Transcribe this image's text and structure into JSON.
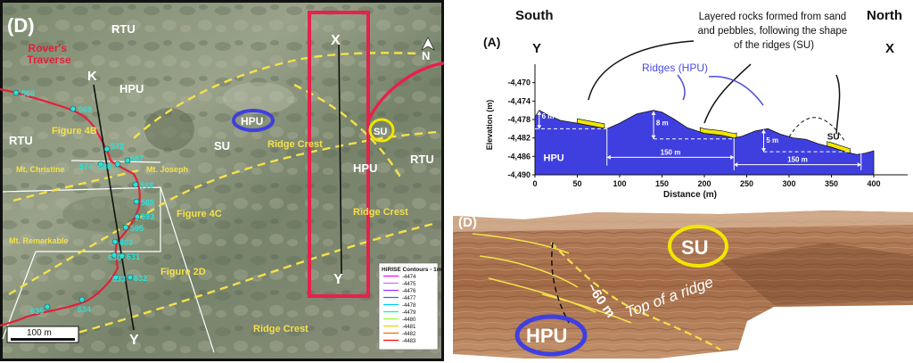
{
  "colors": {
    "hpu_blue": "#3f3fe0",
    "su_yellow": "#f2e600",
    "label_yellow": "#f4e04a",
    "traverse_red": "#e0213a",
    "waypoint_cyan": "#2fe0d8",
    "box_red": "#e8204a"
  },
  "map": {
    "panel_label": "(D)",
    "north_label": "N",
    "labels": {
      "rtu_top": "RTU",
      "rtu_left": "RTU",
      "rtu_right": "RTU",
      "hpu_top": "HPU",
      "hpu_oval": "HPU",
      "hpu_right": "HPU",
      "su_mid": "SU",
      "su_oval": "SU",
      "rovers_traverse": "Rover's\nTraverse",
      "k": "K",
      "x": "X",
      "y_bottom": "Y",
      "y_box": "Y",
      "figure_4b": "Figure 4B",
      "figure_4c": "Figure 4C",
      "figure_2d": "Figure 2D",
      "mt_christine": "Mt. Christine",
      "mt_joseph": "Mt. Joseph",
      "mt_remarkable": "Mt. Remarkable",
      "ridge_crest_1": "Ridge Crest",
      "ridge_crest_2": "Ridge Crest",
      "ridge_crest_3": "Ridge Crest",
      "scale_bar": "100 m"
    },
    "waypoints": [
      "568",
      "569",
      "572",
      "574",
      "586",
      "587",
      "588",
      "589",
      "593",
      "595",
      "603",
      "630",
      "631",
      "632",
      "633",
      "634",
      "635"
    ],
    "legend": {
      "title": "HiRISE Contours - 1m",
      "items": [
        "-4474",
        "-4475",
        "-4476",
        "-4477",
        "-4478",
        "-4479",
        "-4480",
        "-4481",
        "-4482",
        "-4483"
      ]
    }
  },
  "profile": {
    "panel_label": "(A)",
    "south": "South",
    "north": "North",
    "y_end": "Y",
    "x_end": "X",
    "annotation_layered": "Layered rocks formed from sand\nand pebbles, following the shape\nof the ridges (SU)",
    "annotation_ridges": "Ridges (HPU)",
    "hpu": "HPU",
    "su": "SU",
    "dims": [
      "6 m",
      "8 m",
      "5 m",
      "150 m",
      "150 m"
    ]
  },
  "chart_data": {
    "type": "area",
    "xlabel": "Distance (m)",
    "ylabel": "Elevation (m)",
    "xlim": [
      0,
      440
    ],
    "ylim": [
      -4490,
      -4466
    ],
    "x_ticks": [
      0,
      50,
      100,
      150,
      200,
      250,
      300,
      350,
      400
    ],
    "y_ticks": [
      -4470,
      -4474,
      -4478,
      -4482,
      -4486,
      -4490
    ],
    "series": [
      {
        "x": [
          0,
          5,
          15,
          30,
          50,
          70,
          85,
          100,
          120,
          140,
          150,
          165,
          180,
          200,
          220,
          235,
          245,
          260,
          275,
          290,
          305,
          320,
          335,
          350,
          360,
          370,
          380,
          390,
          400
        ],
        "y": [
          -4477.5,
          -4476.0,
          -4477.0,
          -4478.2,
          -4478.8,
          -4479.5,
          -4480.0,
          -4478.8,
          -4476.8,
          -4476.0,
          -4476.4,
          -4478.0,
          -4479.8,
          -4481.0,
          -4481.4,
          -4482.0,
          -4481.6,
          -4480.5,
          -4480.0,
          -4481.2,
          -4482.0,
          -4482.3,
          -4483.3,
          -4484.0,
          -4484.6,
          -4485.2,
          -4485.6,
          -4485.3,
          -4484.8
        ]
      }
    ]
  },
  "photo": {
    "panel_label": "(D)",
    "su": "SU",
    "hpu": "HPU",
    "height": "~60 m",
    "top_of_ridge": "Top of a ridge"
  }
}
